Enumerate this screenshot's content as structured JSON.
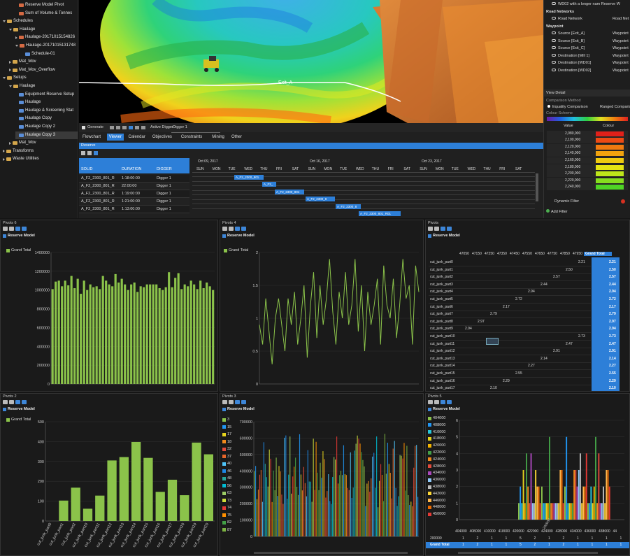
{
  "tree": {
    "items": [
      {
        "label": "Reserve Model Pivot",
        "indent": 2,
        "icon": "fold r"
      },
      {
        "label": "Sum of Volume & Tonnes",
        "indent": 2,
        "icon": "fold r"
      },
      {
        "label": "Schedules",
        "indent": 0,
        "icon": "fold",
        "open": true
      },
      {
        "label": "Haulage",
        "indent": 1,
        "icon": "fold",
        "open": true
      },
      {
        "label": "Haulage-20171015154826",
        "indent": 2,
        "icon": "fold r",
        "closed": true
      },
      {
        "label": "Haulage-20171015131748",
        "indent": 2,
        "icon": "fold r",
        "open": true
      },
      {
        "label": "Schedule-01",
        "indent": 3,
        "icon": "fold b"
      },
      {
        "label": "Mat_Mov",
        "indent": 1,
        "icon": "fold",
        "closed": true
      },
      {
        "label": "Mat_Mov_Overflow",
        "indent": 1,
        "icon": "fold",
        "closed": true
      },
      {
        "label": "Setups",
        "indent": 0,
        "icon": "fold",
        "open": true
      },
      {
        "label": "Haulage",
        "indent": 1,
        "icon": "fold",
        "open": true
      },
      {
        "label": "Equipment Reserve Setup",
        "indent": 2,
        "icon": "fold b"
      },
      {
        "label": "Haulage",
        "indent": 2,
        "icon": "fold b"
      },
      {
        "label": "Haulage & Screening Stat",
        "indent": 2,
        "icon": "fold b"
      },
      {
        "label": "Haulage Copy",
        "indent": 2,
        "icon": "fold b"
      },
      {
        "label": "Haulage Copy 2",
        "indent": 2,
        "icon": "fold b"
      },
      {
        "label": "Haulage Copy 3",
        "indent": 2,
        "icon": "fold b",
        "selected": true
      },
      {
        "label": "Mat_Mov",
        "indent": 1,
        "icon": "fold",
        "closed": true
      },
      {
        "label": "Transforms",
        "indent": 0,
        "icon": "fold",
        "closed": true
      },
      {
        "label": "Waste Utilities",
        "indent": 0,
        "icon": "fold",
        "closed": true
      }
    ]
  },
  "view3d": {
    "waypoint_label": "Exit_A"
  },
  "props": {
    "top_item": "WD02 with a longer nam  Reserve W",
    "road_header": "Road Networks",
    "road_item": "Road Network",
    "road_item_val": "Road Net",
    "waypoint_header": "Waypoint",
    "waypoints": [
      {
        "label": "Source [Exit_A]",
        "val": "Waypoint"
      },
      {
        "label": "Source [Exit_B]",
        "val": "Waypoint"
      },
      {
        "label": "Source [Exit_C]",
        "val": "Waypoint"
      },
      {
        "label": "Destination [Mill 1]",
        "val": "Waypoint"
      },
      {
        "label": "Destination [WD01]",
        "val": "Waypoint"
      },
      {
        "label": "Destination [WD02]",
        "val": "Waypoint"
      }
    ],
    "view_detail": "View Detail",
    "comparison_method": "Comparison Method",
    "equality": "Equality Comparison",
    "ranged": "Ranged Comparis",
    "colour_scheme": "Colour Scheme",
    "value_header": "Value",
    "colour_header": "Colour",
    "values": [
      "2,080,000",
      "2,100,000",
      "2,120,000",
      "2,140,000",
      "2,160,000",
      "2,180,000",
      "2,200,000",
      "2,220,000",
      "2,240,000"
    ],
    "colours": [
      "#e0201a",
      "#ee4a14",
      "#f07a10",
      "#f0a30e",
      "#eecb10",
      "#e4e413",
      "#bde51a",
      "#86de1e",
      "#4fd525"
    ],
    "dynamic_filter": "Dynamic Filter",
    "add_filter": "Add Filter"
  },
  "sched": {
    "toolbar_generate": "Generate",
    "active_digger_label": "Active Digger",
    "active_digger": "Digger 1",
    "tabs": [
      "Flowchart",
      "Viewer",
      "Calendar",
      "Objectives",
      "Constraints",
      "Mining",
      "Other"
    ],
    "active_tab": 1,
    "section": "Reserve",
    "columns": [
      "SOLID",
      "DURATION",
      "DIGGER"
    ],
    "rows": [
      [
        "A_F2_2300_801_R",
        "1:18:00:00",
        "Digger 1"
      ],
      [
        "A_F2_2300_801_R",
        "22:00:00",
        "Digger 1"
      ],
      [
        "A_F2_2300_801_R",
        "1:19:00:00",
        "Digger 1"
      ],
      [
        "A_F2_2300_801_R",
        "1:21:00:00",
        "Digger 1"
      ],
      [
        "A_F2_2300_801_R",
        "1:13:00:00",
        "Digger 1"
      ]
    ],
    "weeks": [
      "Oct 09, 2017",
      "Oct 16, 2017",
      "Oct 23, 2017"
    ],
    "days": [
      "SUN",
      "MON",
      "TUE",
      "WED",
      "THU",
      "FRI",
      "SAT"
    ],
    "bars": [
      "A_F2_2300_801",
      "A_F2_",
      "A_F2_2300_801",
      "A_F2_2300_8",
      "A_F2_2300_8",
      "A_F2_2300_801_R01"
    ]
  },
  "pivot6": {
    "title": "Pivots 6",
    "model": "Reserve Model",
    "legend": "Grand Total",
    "legend_color": "#8bc34a",
    "chart_data": {
      "type": "bar",
      "series": [
        {
          "name": "Grand Total",
          "values": [
            1010000,
            1090000,
            1100000,
            1040000,
            1100000,
            1050000,
            1150000,
            1020000,
            1120000,
            960000,
            1100000,
            1000000,
            1060000,
            1030000,
            1040000,
            1010000,
            1150000,
            1100000,
            1060000,
            1040000,
            1170000,
            1080000,
            1120000,
            1060000,
            1000000,
            1060000,
            1080000,
            980000,
            1040000,
            1030000,
            1060000,
            1060000,
            1060000,
            1060000,
            1020000,
            1000000,
            1030000,
            1190000,
            1030000,
            1130000,
            1180000,
            1010000,
            1060000,
            1040000,
            1100000,
            1060000,
            1010000,
            1100000,
            1020000,
            1080000,
            1040000,
            1000000
          ]
        }
      ],
      "ylim": [
        0,
        1400000
      ],
      "yticks": [
        0,
        200000,
        400000,
        600000,
        800000,
        1000000,
        1200000,
        1400000
      ]
    }
  },
  "pivot4": {
    "title": "Pivots 4",
    "model": "Reserve Model",
    "legend": "Grand Total",
    "legend_color": "#8bc34a",
    "chart_data": {
      "type": "line",
      "series": [
        {
          "name": "Grand Total",
          "values": [
            0.9,
            0.6,
            1.3,
            0.8,
            0.3,
            1.0,
            1.3,
            0.9,
            0.5,
            1.3,
            0.9,
            1.4,
            0.6,
            1.0,
            1.5,
            0.4,
            1.2,
            1.7,
            0.7,
            1.5,
            0.9,
            1.3,
            1.9,
            1.1,
            0.6,
            1.4,
            1.0,
            1.7,
            0.9,
            1.2,
            1.9,
            0.8,
            1.5,
            0.5,
            1.4,
            0.9,
            1.2,
            1.6,
            0.6,
            1.8,
            1.2,
            1.0,
            1.6,
            0.7,
            1.2,
            1.9,
            1.3,
            1.5,
            0.6,
            1.8,
            1.4
          ]
        }
      ],
      "ylim": [
        0,
        2
      ],
      "yticks": [
        0,
        0.5,
        1,
        1.5,
        2
      ]
    }
  },
  "pivots": {
    "title": "Pivots",
    "model": "Reserve Model",
    "columns": [
      "47050",
      "47150",
      "47250",
      "47350",
      "47450",
      "47550",
      "47650",
      "47750",
      "47850",
      "47950",
      "Grand Total"
    ],
    "rows": [
      {
        "label": "cut_junk_part0",
        "col": 9,
        "v": "2.21",
        "t": "2.21"
      },
      {
        "label": "cut_junk_part1",
        "col": 8,
        "v": "2.50",
        "t": "2.50"
      },
      {
        "label": "cut_junk_part2",
        "col": 7,
        "v": "2.57",
        "t": "2.57"
      },
      {
        "label": "cut_junk_part3",
        "col": 6,
        "v": "2.44",
        "t": "2.44"
      },
      {
        "label": "cut_junk_part4",
        "col": 5,
        "v": "2.94",
        "t": "2.94"
      },
      {
        "label": "cut_junk_part5",
        "col": 4,
        "v": "2.72",
        "t": "2.72"
      },
      {
        "label": "cut_junk_part6",
        "col": 3,
        "v": "2.17",
        "t": "2.17"
      },
      {
        "label": "cut_junk_part7",
        "col": 2,
        "v": "2.79",
        "t": "2.79"
      },
      {
        "label": "cut_junk_part8",
        "col": 1,
        "v": "2.97",
        "t": "2.97"
      },
      {
        "label": "cut_junk_part9",
        "col": 0,
        "v": "2.94",
        "t": "2.94"
      },
      {
        "label": "cut_junk_part10",
        "col": 9,
        "v": "2.73",
        "t": "2.73"
      },
      {
        "label": "cut_junk_part11",
        "col": 8,
        "v": "2.47",
        "t": "2.47"
      },
      {
        "label": "cut_junk_part12",
        "col": 7,
        "v": "2.91",
        "t": "2.91"
      },
      {
        "label": "cut_junk_part13",
        "col": 6,
        "v": "2.14",
        "t": "2.14"
      },
      {
        "label": "cut_junk_part14",
        "col": 5,
        "v": "2.27",
        "t": "2.27"
      },
      {
        "label": "cut_junk_part15",
        "col": 4,
        "v": "2.55",
        "t": "2.55"
      },
      {
        "label": "cut_junk_part16",
        "col": 3,
        "v": "2.29",
        "t": "2.29"
      },
      {
        "label": "cut_junk_part17",
        "col": 2,
        "v": "2.10",
        "t": "2.10"
      }
    ]
  },
  "pivot2": {
    "title": "Pivots 2",
    "model": "Reserve Model",
    "legend": "Grand Total",
    "legend_color": "#8bc34a",
    "chart_data": {
      "type": "bar",
      "categories": [
        "cut_junk_part0",
        "cut_junk_part1",
        "cut_junk_part2",
        "cut_junk_part10",
        "cut_junk_part11",
        "cut_junk_part12",
        "cut_junk_part13",
        "cut_junk_part14",
        "cut_junk_part15",
        "cut_junk_part16",
        "cut_junk_part17",
        "cut_junk_part18",
        "cut_junk_part19",
        "cut_junk_part20"
      ],
      "series": [
        {
          "name": "Grand Total",
          "values": [
            0,
            103,
            168,
            62,
            128,
            305,
            322,
            398,
            318,
            147,
            208,
            130,
            395,
            336
          ]
        }
      ],
      "ylim": [
        0,
        500
      ],
      "yticks": [
        0,
        100,
        200,
        300,
        400,
        500
      ]
    }
  },
  "pivot3": {
    "title": "Pivots 3",
    "model": "Reserve Model",
    "legend": [
      "3",
      "15",
      "17",
      "18",
      "32",
      "37",
      "40",
      "46",
      "48",
      "56",
      "63",
      "73",
      "74",
      "75",
      "82",
      "87"
    ],
    "legend_colors": [
      "#8bc34a",
      "#2196f3",
      "#e6d31d",
      "#f08a1d",
      "#e24a3b",
      "#e6662a",
      "#4fc3f7",
      "#1e88e5",
      "#26a69a",
      "#00bcd4",
      "#9ccc65",
      "#cddc39",
      "#e53935",
      "#ff8f00",
      "#43a047",
      "#7cb342"
    ],
    "chart_data": {
      "type": "bar",
      "ylim": [
        0,
        700000
      ],
      "yticks": [
        0,
        100000,
        200000,
        300000,
        400000,
        500000,
        600000,
        700000
      ]
    }
  },
  "pivot5": {
    "title": "Pivots 5",
    "model": "Reserve Model",
    "legend": [
      "404000",
      "408000",
      "410000",
      "418000",
      "420000",
      "422000",
      "424000",
      "428000",
      "434000",
      "436000",
      "438000",
      "442000",
      "446000",
      "448000",
      "450000"
    ],
    "legend_colors": [
      "#8bc34a",
      "#2196f3",
      "#26c6da",
      "#e6d31d",
      "#f4b400",
      "#43a047",
      "#f08a1d",
      "#e24a3b",
      "#ab47bc",
      "#90caf9",
      "#bdbdbd",
      "#fdd835",
      "#ffb74d",
      "#ef6c00",
      "#e53935"
    ],
    "chart_data": {
      "type": "bar",
      "ylim": [
        0,
        6
      ],
      "yticks": [
        0,
        1,
        2,
        3,
        4,
        5,
        6
      ]
    },
    "table_header": [
      "404000",
      "408000",
      "410000",
      "418000",
      "420000",
      "422000",
      "424000",
      "428000",
      "434000",
      "436000",
      "438000",
      "44"
    ],
    "table_row_label": "200000",
    "table_row": [
      "1",
      "2",
      "1",
      "1",
      "5",
      "2",
      "1",
      "2",
      "1",
      "1",
      "1",
      "1"
    ],
    "total_label": "Grand Total",
    "total_row": [
      "1",
      "2",
      "1",
      "1",
      "5",
      "2",
      "1",
      "2",
      "1",
      "1",
      "1",
      "1"
    ],
    "x_label": "200000"
  }
}
